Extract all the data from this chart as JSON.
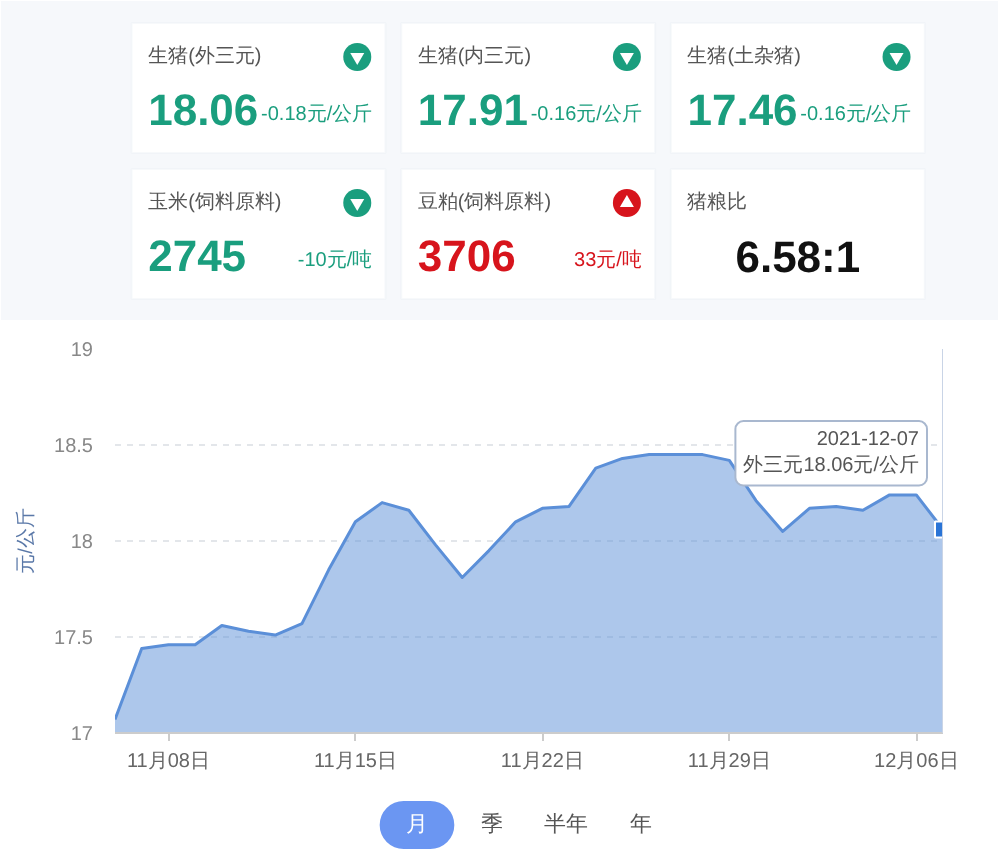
{
  "chart_data": [
    {
      "type": "other",
      "categories": [
        "生猪(外三元)",
        "生猪(内三元)",
        "生猪(土杂猪)",
        "玉米(饲料原料)",
        "豆粕(饲料原料)",
        "猪粮比"
      ],
      "series": [
        {
          "values": [
            18.06,
            17.91,
            17.46,
            2745,
            3706,
            6.58
          ],
          "value_labels": [
            "18.06",
            "17.91",
            "17.46",
            "2745",
            "3706",
            "6.58:1"
          ]
        },
        {
          "values": [
            -0.18,
            -0.16,
            -0.16,
            -10,
            33,
            null
          ],
          "value_labels": [
            "-0.18元/公斤",
            "-0.16元/公斤",
            "-0.16元/公斤",
            "-10元/吨",
            "33元/吨",
            null
          ]
        }
      ]
    },
    {
      "type": "area",
      "ylabel": "元/公斤",
      "x": [
        "2021-11-06",
        "2021-11-07",
        "2021-11-08",
        "2021-11-09",
        "2021-11-10",
        "2021-11-11",
        "2021-11-12",
        "2021-11-13",
        "2021-11-14",
        "2021-11-15",
        "2021-11-16",
        "2021-11-17",
        "2021-11-18",
        "2021-11-19",
        "2021-11-20",
        "2021-11-21",
        "2021-11-22",
        "2021-11-23",
        "2021-11-24",
        "2021-11-25",
        "2021-11-26",
        "2021-11-27",
        "2021-11-28",
        "2021-11-29",
        "2021-11-30",
        "2021-12-01",
        "2021-12-02",
        "2021-12-03",
        "2021-12-04",
        "2021-12-05",
        "2021-12-06",
        "2021-12-07"
      ],
      "series": [
        {
          "color": "#5b8fd8",
          "values": [
            17.07,
            17.44,
            17.46,
            17.46,
            17.56,
            17.53,
            17.51,
            17.57,
            17.85,
            18.1,
            18.2,
            18.16,
            17.98,
            17.81,
            17.95,
            18.1,
            18.17,
            18.18,
            18.38,
            18.43,
            18.45,
            18.45,
            18.45,
            18.42,
            18.21,
            18.05,
            18.17,
            18.18,
            18.16,
            18.24,
            18.24,
            18.06
          ]
        }
      ],
      "xlim": [
        "2021-11-06",
        "2021-12-07"
      ],
      "ylim": [
        17,
        19
      ],
      "yticks": [
        17,
        17.5,
        18,
        18.5,
        19
      ],
      "xticks": [
        {
          "value": "2021-11-08",
          "label": "11月08日"
        },
        {
          "value": "2021-11-15",
          "label": "11月15日"
        },
        {
          "value": "2021-11-22",
          "label": "11月22日"
        },
        {
          "value": "2021-11-29",
          "label": "11月29日"
        },
        {
          "value": "2021-12-06",
          "label": "12月06日"
        }
      ],
      "grid": "y",
      "ref_lines": [
        {
          "axis": "x",
          "value": "2021-12-07",
          "color": "#c9d4e6"
        }
      ],
      "annotations": [
        {
          "text": "2021-12-07\n外三元18.06元/公斤",
          "x": "2021-12-07",
          "y": 18.06
        }
      ]
    },
    {
      "type": "other",
      "categories": [
        "月",
        "季",
        "半年",
        "年"
      ],
      "colors": [
        "#6b96f2",
        null,
        null,
        null
      ]
    }
  ]
}
